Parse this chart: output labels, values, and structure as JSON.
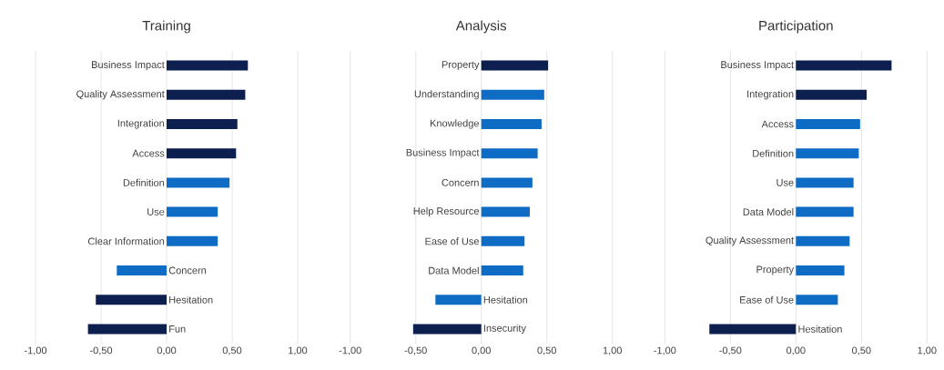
{
  "chart_data": [
    {
      "type": "bar",
      "orientation": "horizontal",
      "title": "Training",
      "categories": [
        "Business Impact",
        "Quality Assessment",
        "Integration",
        "Access",
        "Definition",
        "Use",
        "Clear Information",
        "Concern",
        "Hesitation",
        "Fun"
      ],
      "values": [
        0.62,
        0.6,
        0.54,
        0.53,
        0.48,
        0.39,
        0.39,
        -0.38,
        -0.54,
        -0.6
      ],
      "colors": [
        "#0c1f4e",
        "#0c1f4e",
        "#0c1f4e",
        "#0c1f4e",
        "#0f6cc4",
        "#0f6cc4",
        "#0f6cc4",
        "#0f6cc4",
        "#0c1f4e",
        "#0c1f4e"
      ],
      "xlim": [
        -1,
        1
      ],
      "xticks": [
        {
          "value": -1,
          "label": "-1,00"
        },
        {
          "value": -0.5,
          "label": "-0,50"
        },
        {
          "value": 0,
          "label": "0,00"
        },
        {
          "value": 0.5,
          "label": "0,50"
        },
        {
          "value": 1,
          "label": "1,00"
        }
      ],
      "grid": "x"
    },
    {
      "type": "bar",
      "orientation": "horizontal",
      "title": "Analysis",
      "categories": [
        "Property",
        "Understanding",
        "Knowledge",
        "Business Impact",
        "Concern",
        "Help Resource",
        "Ease of Use",
        "Data Model",
        "Hesitation",
        "Insecurity"
      ],
      "values": [
        0.51,
        0.48,
        0.46,
        0.43,
        0.39,
        0.37,
        0.33,
        0.32,
        -0.35,
        -0.52
      ],
      "colors": [
        "#0c1f4e",
        "#0f6cc4",
        "#0f6cc4",
        "#0f6cc4",
        "#0f6cc4",
        "#0f6cc4",
        "#0f6cc4",
        "#0f6cc4",
        "#0f6cc4",
        "#0c1f4e"
      ],
      "xlim": [
        -1,
        1
      ],
      "xticks": [
        {
          "value": -1,
          "label": "-1,00"
        },
        {
          "value": -0.5,
          "label": "-0,50"
        },
        {
          "value": 0,
          "label": "0,00"
        },
        {
          "value": 0.5,
          "label": "0,50"
        },
        {
          "value": 1,
          "label": "1,00"
        }
      ],
      "grid": "x"
    },
    {
      "type": "bar",
      "orientation": "horizontal",
      "title": "Participation",
      "categories": [
        "Business Impact",
        "Integration",
        "Access",
        "Definition",
        "Use",
        "Data Model",
        "Quality Assessment",
        "Property",
        "Ease of Use",
        "Hesitation"
      ],
      "values": [
        0.73,
        0.54,
        0.49,
        0.48,
        0.44,
        0.44,
        0.41,
        0.37,
        0.32,
        -0.66
      ],
      "colors": [
        "#0c1f4e",
        "#0c1f4e",
        "#0f6cc4",
        "#0f6cc4",
        "#0f6cc4",
        "#0f6cc4",
        "#0f6cc4",
        "#0f6cc4",
        "#0f6cc4",
        "#0c1f4e"
      ],
      "xlim": [
        -1,
        1
      ],
      "xticks": [
        {
          "value": -1,
          "label": "-1,00"
        },
        {
          "value": -0.5,
          "label": "-0,50"
        },
        {
          "value": 0,
          "label": "0,00"
        },
        {
          "value": 0.5,
          "label": "0,50"
        },
        {
          "value": 1,
          "label": "1,00"
        }
      ],
      "grid": "x"
    }
  ]
}
